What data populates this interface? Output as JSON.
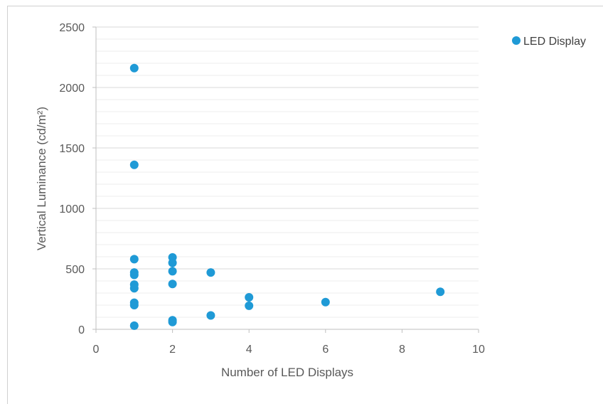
{
  "chart_data": {
    "type": "scatter",
    "xlabel": "Number of LED Displays",
    "ylabel": "Vertical Luminance (cd/m²)",
    "xlim": [
      0,
      10
    ],
    "ylim": [
      0,
      2500
    ],
    "x_ticks": [
      "0",
      "2",
      "4",
      "6",
      "8",
      "10"
    ],
    "y_ticks": [
      "0",
      "500",
      "1000",
      "1500",
      "2000",
      "2500"
    ],
    "grid": "horizontal major and minor gridlines",
    "legend_position": "top-right",
    "series": [
      {
        "name": "LED Display",
        "color": "#1f9ad6",
        "points": [
          {
            "x": 1,
            "y": 2160
          },
          {
            "x": 1,
            "y": 1360
          },
          {
            "x": 1,
            "y": 580
          },
          {
            "x": 1,
            "y": 470
          },
          {
            "x": 1,
            "y": 450
          },
          {
            "x": 1,
            "y": 370
          },
          {
            "x": 1,
            "y": 340
          },
          {
            "x": 1,
            "y": 220
          },
          {
            "x": 1,
            "y": 200
          },
          {
            "x": 1,
            "y": 30
          },
          {
            "x": 2,
            "y": 595
          },
          {
            "x": 2,
            "y": 550
          },
          {
            "x": 2,
            "y": 480
          },
          {
            "x": 2,
            "y": 375
          },
          {
            "x": 2,
            "y": 75
          },
          {
            "x": 2,
            "y": 60
          },
          {
            "x": 3,
            "y": 470
          },
          {
            "x": 3,
            "y": 115
          },
          {
            "x": 4,
            "y": 265
          },
          {
            "x": 4,
            "y": 195
          },
          {
            "x": 6,
            "y": 225
          },
          {
            "x": 9,
            "y": 310
          }
        ]
      }
    ]
  }
}
